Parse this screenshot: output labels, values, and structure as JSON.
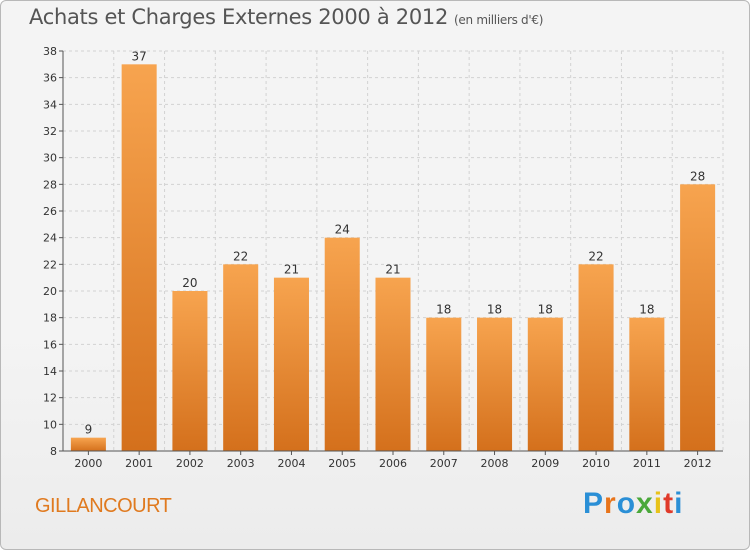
{
  "header": {
    "title": "Achats et Charges Externes 2000 à 2012",
    "subtitle": "(en milliers d'€)"
  },
  "footer": {
    "place": "GILLANCOURT",
    "brand": "Proxiti"
  },
  "colors": {
    "bar_light": "#f7a44f",
    "bar_dark": "#d4701c",
    "place_text": "#e07a1f"
  },
  "chart_data": {
    "type": "bar",
    "title": "Achats et Charges Externes 2000 à 2012",
    "subtitle": "(en milliers d'€)",
    "xlabel": "",
    "ylabel": "",
    "categories": [
      "2000",
      "2001",
      "2002",
      "2003",
      "2004",
      "2005",
      "2006",
      "2007",
      "2008",
      "2009",
      "2010",
      "2011",
      "2012"
    ],
    "values": [
      9,
      37,
      20,
      22,
      21,
      24,
      21,
      18,
      18,
      18,
      22,
      18,
      28
    ],
    "ylim": [
      8,
      38
    ],
    "yticks": [
      8,
      10,
      12,
      14,
      16,
      18,
      20,
      22,
      24,
      26,
      28,
      30,
      32,
      34,
      36,
      38
    ],
    "grid": true
  }
}
